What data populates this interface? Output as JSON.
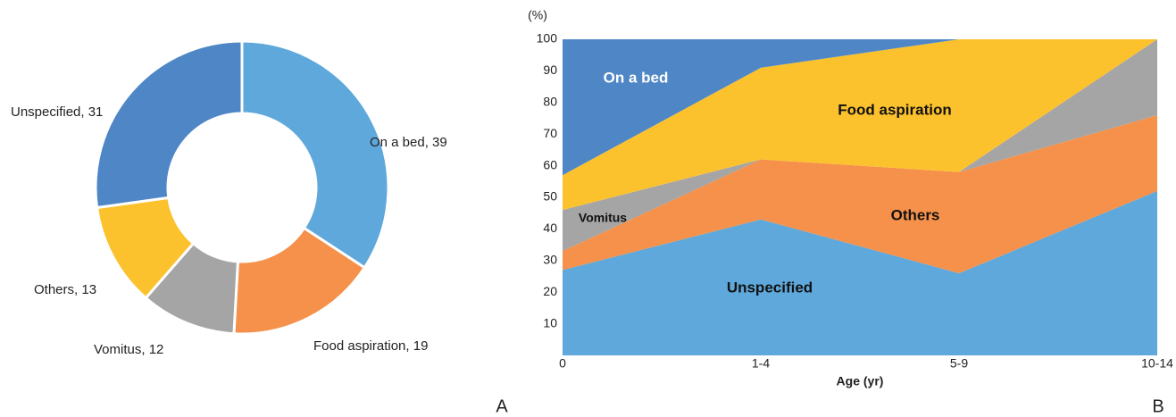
{
  "chart_data": [
    {
      "type": "pie",
      "panel_label": "A",
      "categories": [
        "On a bed",
        "Food aspiration",
        "Vomitus",
        "Others",
        "Unspecified"
      ],
      "values": [
        39,
        19,
        12,
        13,
        31
      ],
      "value_labels": [
        "On a bed, 39",
        "Food aspiration, 19",
        "Vomitus, 12",
        "Others, 13",
        "Unspecified, 31"
      ],
      "colors": [
        "#5fa8db",
        "#f5914a",
        "#a5a5a5",
        "#fcc22d",
        "#4f86c6"
      ]
    },
    {
      "type": "area",
      "stacked": true,
      "panel_label": "B",
      "y_unit": "(%)",
      "xlabel": "Age (yr)",
      "categories": [
        "0",
        "1-4",
        "5-9",
        "10-14"
      ],
      "ylim": [
        0,
        100
      ],
      "yticks": [
        10,
        20,
        30,
        40,
        50,
        60,
        70,
        80,
        90,
        100
      ],
      "series": [
        {
          "name": "Unspecified",
          "color": "#5fa8db",
          "values": [
            27,
            43,
            26,
            52
          ]
        },
        {
          "name": "Others",
          "color": "#f5914a",
          "values": [
            6,
            19,
            32,
            24
          ]
        },
        {
          "name": "Vomitus",
          "color": "#a5a5a5",
          "values": [
            13,
            0,
            0,
            24
          ]
        },
        {
          "name": "Food aspiration",
          "color": "#fcc22d",
          "values": [
            11,
            29,
            42,
            0
          ]
        },
        {
          "name": "On a bed",
          "color": "#4f86c6",
          "values": [
            43,
            9,
            0,
            0
          ]
        }
      ]
    }
  ]
}
